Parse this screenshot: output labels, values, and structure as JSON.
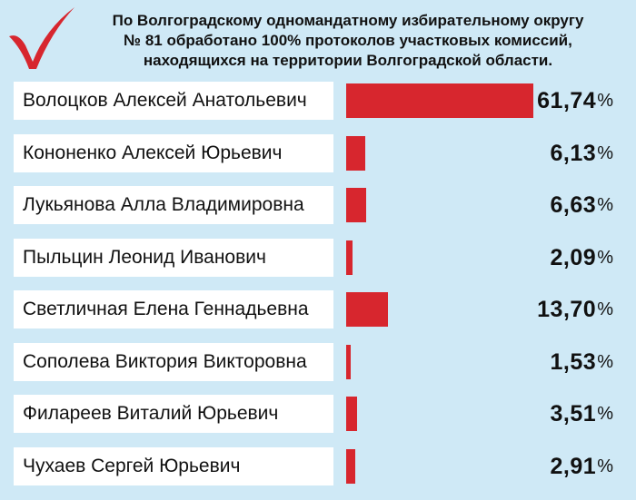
{
  "header": {
    "line1": "По Волгоградскому одномандатному избирательному округу",
    "line2": "№ 81 обработано 100% протоколов участковых комиссий,",
    "line3": "находящихся на территории Волгоградской области."
  },
  "percent_sign": "%",
  "colors": {
    "background": "#cfe9f6",
    "bar": "#d7262e",
    "check": "#d7262e"
  },
  "chart_data": {
    "type": "bar",
    "orientation": "horizontal",
    "title": "По Волгоградскому одномандатному избирательному округу № 81 обработано 100% протоколов участковых комиссий, находящихся на территории Волгоградской области.",
    "categories": [
      "Волоцков Алексей Анатольевич",
      "Кононенко Алексей Юрьевич",
      "Лукьянова Алла Владимировна",
      "Пыльцин Леонид Иванович",
      "Светличная Елена Геннадьевна",
      "Сополева Виктория Викторовна",
      "Филареев Виталий Юрьевич",
      "Чухаев Сергей Юрьевич"
    ],
    "values": [
      61.74,
      6.13,
      6.63,
      2.09,
      13.7,
      1.53,
      3.51,
      2.91
    ],
    "value_labels": [
      "61,74",
      "6,13",
      "6,63",
      "2,09",
      "13,70",
      "1,53",
      "3,51",
      "2,91"
    ],
    "xlim": [
      0,
      61.74
    ]
  }
}
